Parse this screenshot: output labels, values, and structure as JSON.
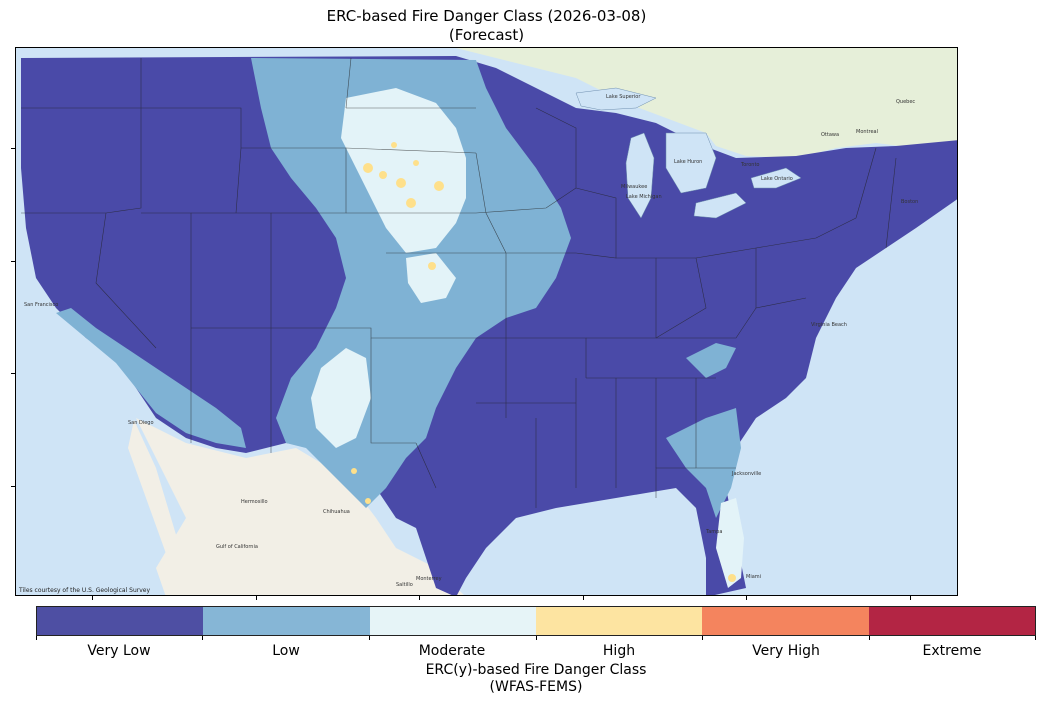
{
  "title": {
    "line1": "ERC-based Fire Danger Class (2026-03-08)",
    "line2": "(Forecast)"
  },
  "map": {
    "attribution": "Tiles courtesy of the U.S. Geological Survey",
    "place_labels": [
      "San Francisco",
      "San Diego",
      "Hermosillo",
      "Chihuahua",
      "Gulf of California",
      "Monterrey",
      "Saltillo",
      "Jacksonville",
      "Miami",
      "Tampa",
      "Milwaukee",
      "Lake Michigan",
      "Lake Superior",
      "Lake Huron",
      "Lake Ontario",
      "Toronto",
      "Ottawa",
      "Montreal",
      "Boston",
      "Virginia Beach",
      "Quebec"
    ],
    "colors": {
      "ocean": "#cfe4f6",
      "land": "#eef0e8",
      "very_low": "#4a4aa8",
      "low": "#7fb2d4",
      "moderate": "#e3f3f8",
      "high": "#fee08b"
    }
  },
  "colorbar": {
    "classes": [
      {
        "label": "Very Low",
        "color": "#4e4fa3"
      },
      {
        "label": "Low",
        "color": "#86b6d6"
      },
      {
        "label": "Moderate",
        "color": "#e6f4f7"
      },
      {
        "label": "High",
        "color": "#fde4a1"
      },
      {
        "label": "Very High",
        "color": "#f4845e"
      },
      {
        "label": "Extreme",
        "color": "#b32544"
      }
    ],
    "title_line1": "ERC(y)-based Fire Danger Class",
    "title_line2": "(WFAS-FEMS)"
  }
}
